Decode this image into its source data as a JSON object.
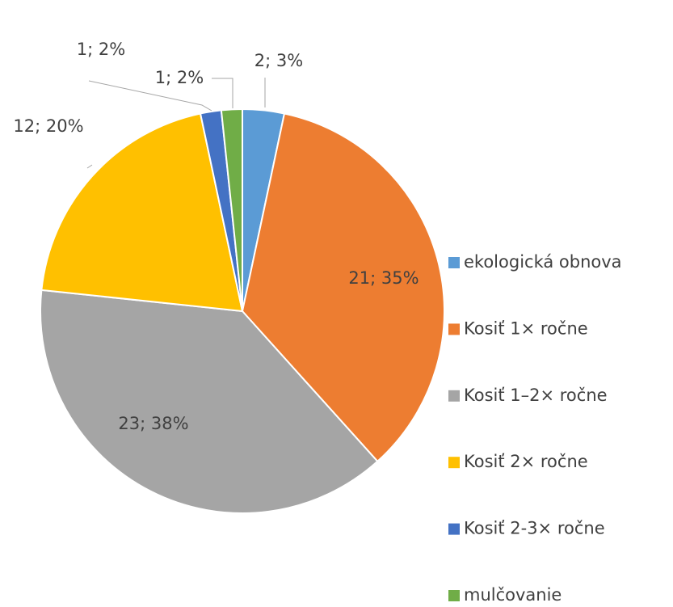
{
  "chart_data": {
    "type": "pie",
    "categories": [
      "ekologická obnova",
      "Kosiť 1× ročne",
      "Kosiť 1–2× ročne",
      "Kosiť 2× ročne",
      "Kosiť 2-3× ročne",
      "mulčovanie"
    ],
    "values": [
      2,
      21,
      23,
      12,
      1,
      1
    ],
    "value_labels": [
      "2; 3%",
      "21; 35%",
      "23; 38%",
      "12; 20%",
      "1; 2%",
      "1; 2%"
    ],
    "colors": [
      "#5b9bd5",
      "#ed7d31",
      "#a5a5a5",
      "#ffc000",
      "#4472c4",
      "#70ad47"
    ],
    "legend": "right"
  }
}
